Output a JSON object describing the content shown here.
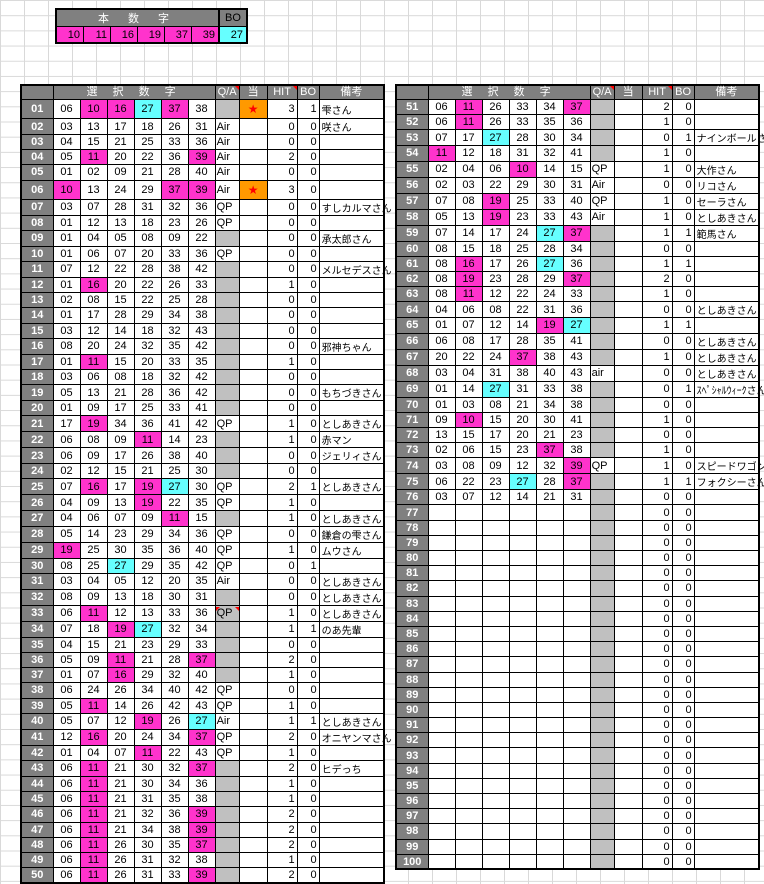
{
  "colors": {
    "header_bg": "#808080",
    "hit_fill": "#FF33CC",
    "bonus_fill": "#66FFFF",
    "qa_bg": "#C0C0C0",
    "star_bg": "#FF9900",
    "star_color": "#FF0000"
  },
  "icons": {
    "star": "★"
  },
  "winning": {
    "title": "本 数 字",
    "bo_label": "BO",
    "numbers": [
      "10",
      "11",
      "16",
      "19",
      "37",
      "39"
    ],
    "bonus": "27"
  },
  "table_headers": {
    "numbers": "選 択 数 字",
    "qa": "Q/A",
    "atari": "当",
    "hit": "HIT",
    "bo": "BO",
    "biko": "備考"
  },
  "rows": [
    {
      "no": "01",
      "nums": [
        "06",
        "10",
        "16",
        "27",
        "37",
        "38"
      ],
      "qa": "",
      "star": true,
      "hit": 3,
      "bo": 1,
      "name": "雫さん"
    },
    {
      "no": "02",
      "nums": [
        "03",
        "13",
        "17",
        "18",
        "26",
        "31"
      ],
      "qa": "Air",
      "hit": 0,
      "bo": 0,
      "name": "咲さん"
    },
    {
      "no": "03",
      "nums": [
        "04",
        "15",
        "21",
        "25",
        "33",
        "36"
      ],
      "qa": "Air",
      "hit": 0,
      "bo": 0,
      "name": ""
    },
    {
      "no": "04",
      "nums": [
        "05",
        "11",
        "20",
        "22",
        "36",
        "39"
      ],
      "qa": "Air",
      "hit": 2,
      "bo": 0,
      "name": ""
    },
    {
      "no": "05",
      "nums": [
        "01",
        "02",
        "09",
        "21",
        "28",
        "40"
      ],
      "qa": "Air",
      "hit": 0,
      "bo": 0,
      "name": ""
    },
    {
      "no": "06",
      "nums": [
        "10",
        "13",
        "24",
        "29",
        "37",
        "39"
      ],
      "qa": "Air",
      "star": true,
      "hit": 3,
      "bo": 0,
      "name": ""
    },
    {
      "no": "07",
      "nums": [
        "03",
        "07",
        "28",
        "31",
        "32",
        "36"
      ],
      "qa": "QP",
      "hit": 0,
      "bo": 0,
      "name": "すしカルマさん"
    },
    {
      "no": "08",
      "nums": [
        "01",
        "12",
        "13",
        "18",
        "23",
        "26"
      ],
      "qa": "QP",
      "hit": 0,
      "bo": 0,
      "name": ""
    },
    {
      "no": "09",
      "nums": [
        "01",
        "04",
        "05",
        "08",
        "09",
        "22"
      ],
      "qa": "",
      "hit": 0,
      "bo": 0,
      "name": "承太郎さん"
    },
    {
      "no": "10",
      "nums": [
        "01",
        "06",
        "07",
        "20",
        "33",
        "36"
      ],
      "qa": "QP",
      "hit": 0,
      "bo": 0,
      "name": ""
    },
    {
      "no": "11",
      "nums": [
        "07",
        "12",
        "22",
        "28",
        "38",
        "42"
      ],
      "qa": "",
      "hit": 0,
      "bo": 0,
      "name": "メルセデスさん"
    },
    {
      "no": "12",
      "nums": [
        "01",
        "16",
        "20",
        "22",
        "26",
        "33"
      ],
      "qa": "",
      "hit": 1,
      "bo": 0,
      "name": ""
    },
    {
      "no": "13",
      "nums": [
        "02",
        "08",
        "15",
        "22",
        "25",
        "28"
      ],
      "qa": "",
      "hit": 0,
      "bo": 0,
      "name": ""
    },
    {
      "no": "14",
      "nums": [
        "01",
        "17",
        "28",
        "29",
        "34",
        "38"
      ],
      "qa": "",
      "hit": 0,
      "bo": 0,
      "name": ""
    },
    {
      "no": "15",
      "nums": [
        "03",
        "12",
        "14",
        "18",
        "32",
        "43"
      ],
      "qa": "",
      "hit": 0,
      "bo": 0,
      "name": ""
    },
    {
      "no": "16",
      "nums": [
        "08",
        "20",
        "24",
        "32",
        "35",
        "42"
      ],
      "qa": "",
      "hit": 0,
      "bo": 0,
      "name": "邪神ちゃん"
    },
    {
      "no": "17",
      "nums": [
        "01",
        "11",
        "15",
        "20",
        "33",
        "35"
      ],
      "qa": "",
      "hit": 1,
      "bo": 0,
      "name": ""
    },
    {
      "no": "18",
      "nums": [
        "03",
        "06",
        "08",
        "18",
        "32",
        "42"
      ],
      "qa": "",
      "hit": 0,
      "bo": 0,
      "name": ""
    },
    {
      "no": "19",
      "nums": [
        "05",
        "13",
        "21",
        "28",
        "36",
        "42"
      ],
      "qa": "",
      "hit": 0,
      "bo": 0,
      "name": "もちづきさん"
    },
    {
      "no": "20",
      "nums": [
        "01",
        "09",
        "17",
        "25",
        "33",
        "41"
      ],
      "qa": "",
      "hit": 0,
      "bo": 0,
      "name": ""
    },
    {
      "no": "21",
      "nums": [
        "17",
        "19",
        "34",
        "36",
        "41",
        "42"
      ],
      "qa": "QP",
      "hit": 1,
      "bo": 0,
      "name": "としあきさん"
    },
    {
      "no": "22",
      "nums": [
        "06",
        "08",
        "09",
        "11",
        "14",
        "23"
      ],
      "qa": "",
      "hit": 1,
      "bo": 0,
      "name": "赤マン"
    },
    {
      "no": "23",
      "nums": [
        "06",
        "09",
        "17",
        "26",
        "38",
        "40"
      ],
      "qa": "",
      "hit": 0,
      "bo": 0,
      "name": "ジェリィさん"
    },
    {
      "no": "24",
      "nums": [
        "02",
        "12",
        "15",
        "21",
        "25",
        "30"
      ],
      "qa": "",
      "hit": 0,
      "bo": 0,
      "name": ""
    },
    {
      "no": "25",
      "nums": [
        "07",
        "16",
        "17",
        "19",
        "27",
        "30"
      ],
      "qa": "QP",
      "hit": 2,
      "bo": 1,
      "name": "としあきさん"
    },
    {
      "no": "26",
      "nums": [
        "04",
        "09",
        "13",
        "19",
        "22",
        "35"
      ],
      "qa": "QP",
      "hit": 1,
      "bo": 0,
      "name": ""
    },
    {
      "no": "27",
      "nums": [
        "04",
        "06",
        "07",
        "09",
        "11",
        "15"
      ],
      "qa": "",
      "hit": 1,
      "bo": 0,
      "name": "としあきさん"
    },
    {
      "no": "28",
      "nums": [
        "05",
        "14",
        "23",
        "29",
        "34",
        "36"
      ],
      "qa": "QP",
      "hit": 0,
      "bo": 0,
      "name": "鎌倉の雫さん"
    },
    {
      "no": "29",
      "nums": [
        "19",
        "25",
        "30",
        "35",
        "36",
        "40"
      ],
      "qa": "QP",
      "hit": 1,
      "bo": 0,
      "name": "ムウさん"
    },
    {
      "no": "30",
      "nums": [
        "08",
        "25",
        "27",
        "29",
        "35",
        "42"
      ],
      "qa": "QP",
      "hit": 0,
      "bo": 1,
      "name": ""
    },
    {
      "no": "31",
      "nums": [
        "03",
        "04",
        "05",
        "12",
        "20",
        "35"
      ],
      "qa": "Air",
      "hit": 0,
      "bo": 0,
      "name": "としあきさん"
    },
    {
      "no": "32",
      "nums": [
        "08",
        "09",
        "13",
        "18",
        "30",
        "31"
      ],
      "qa": "",
      "hit": 0,
      "bo": 0,
      "name": "としあきさん"
    },
    {
      "no": "33",
      "nums": [
        "06",
        "11",
        "12",
        "13",
        "33",
        "36"
      ],
      "qa": "QP",
      "comment": true,
      "hit": 1,
      "bo": 0,
      "name": "としあきさん"
    },
    {
      "no": "34",
      "nums": [
        "07",
        "18",
        "19",
        "27",
        "32",
        "34"
      ],
      "qa": "",
      "hit": 1,
      "bo": 1,
      "name": "のあ先輩"
    },
    {
      "no": "35",
      "nums": [
        "04",
        "15",
        "21",
        "23",
        "29",
        "33"
      ],
      "qa": "",
      "hit": 0,
      "bo": 0,
      "name": ""
    },
    {
      "no": "36",
      "nums": [
        "05",
        "09",
        "11",
        "21",
        "28",
        "37"
      ],
      "qa": "",
      "hit": 2,
      "bo": 0,
      "name": ""
    },
    {
      "no": "37",
      "nums": [
        "01",
        "07",
        "16",
        "29",
        "32",
        "40"
      ],
      "qa": "",
      "hit": 1,
      "bo": 0,
      "name": ""
    },
    {
      "no": "38",
      "nums": [
        "06",
        "24",
        "26",
        "34",
        "40",
        "42"
      ],
      "qa": "QP",
      "hit": 0,
      "bo": 0,
      "name": ""
    },
    {
      "no": "39",
      "nums": [
        "05",
        "11",
        "14",
        "26",
        "42",
        "43"
      ],
      "qa": "QP",
      "hit": 1,
      "bo": 0,
      "name": ""
    },
    {
      "no": "40",
      "nums": [
        "05",
        "07",
        "12",
        "19",
        "26",
        "27"
      ],
      "qa": "Air",
      "hit": 1,
      "bo": 1,
      "name": "としあきさん"
    },
    {
      "no": "41",
      "nums": [
        "12",
        "16",
        "20",
        "24",
        "34",
        "37"
      ],
      "qa": "QP",
      "hit": 2,
      "bo": 0,
      "name": "オニヤンマさん"
    },
    {
      "no": "42",
      "nums": [
        "01",
        "04",
        "07",
        "11",
        "22",
        "43"
      ],
      "qa": "QP",
      "hit": 1,
      "bo": 0,
      "name": ""
    },
    {
      "no": "43",
      "nums": [
        "06",
        "11",
        "21",
        "30",
        "32",
        "37"
      ],
      "qa": "",
      "hit": 2,
      "bo": 0,
      "name": "ヒデっち"
    },
    {
      "no": "44",
      "nums": [
        "06",
        "11",
        "21",
        "30",
        "34",
        "36"
      ],
      "qa": "",
      "hit": 1,
      "bo": 0,
      "name": ""
    },
    {
      "no": "45",
      "nums": [
        "06",
        "11",
        "21",
        "31",
        "35",
        "38"
      ],
      "qa": "",
      "hit": 1,
      "bo": 0,
      "name": ""
    },
    {
      "no": "46",
      "nums": [
        "06",
        "11",
        "21",
        "32",
        "36",
        "39"
      ],
      "qa": "",
      "hit": 2,
      "bo": 0,
      "name": ""
    },
    {
      "no": "47",
      "nums": [
        "06",
        "11",
        "21",
        "34",
        "38",
        "39"
      ],
      "qa": "",
      "hit": 2,
      "bo": 0,
      "name": ""
    },
    {
      "no": "48",
      "nums": [
        "06",
        "11",
        "26",
        "30",
        "35",
        "37"
      ],
      "qa": "",
      "hit": 2,
      "bo": 0,
      "name": ""
    },
    {
      "no": "49",
      "nums": [
        "06",
        "11",
        "26",
        "31",
        "32",
        "38"
      ],
      "qa": "",
      "hit": 1,
      "bo": 0,
      "name": ""
    },
    {
      "no": "50",
      "nums": [
        "06",
        "11",
        "26",
        "31",
        "33",
        "39"
      ],
      "qa": "",
      "hit": 2,
      "bo": 0,
      "name": ""
    },
    {
      "no": "51",
      "nums": [
        "06",
        "11",
        "26",
        "33",
        "34",
        "37"
      ],
      "qa": "",
      "hit": 2,
      "bo": 0,
      "name": ""
    },
    {
      "no": "52",
      "nums": [
        "06",
        "11",
        "26",
        "33",
        "35",
        "36"
      ],
      "qa": "",
      "hit": 1,
      "bo": 0,
      "name": ""
    },
    {
      "no": "53",
      "nums": [
        "07",
        "17",
        "27",
        "28",
        "30",
        "34"
      ],
      "qa": "",
      "hit": 0,
      "bo": 1,
      "name": "ナインボールさん"
    },
    {
      "no": "54",
      "nums": [
        "11",
        "12",
        "18",
        "31",
        "32",
        "41"
      ],
      "qa": "",
      "hit": 1,
      "bo": 0,
      "name": ""
    },
    {
      "no": "55",
      "nums": [
        "02",
        "04",
        "06",
        "10",
        "14",
        "15"
      ],
      "qa": "QP",
      "hit": 1,
      "bo": 0,
      "name": "大作さん"
    },
    {
      "no": "56",
      "nums": [
        "02",
        "03",
        "22",
        "29",
        "30",
        "31"
      ],
      "qa": "Air",
      "hit": 0,
      "bo": 0,
      "name": "リコさん"
    },
    {
      "no": "57",
      "nums": [
        "07",
        "08",
        "19",
        "25",
        "33",
        "40"
      ],
      "qa": "QP",
      "hit": 1,
      "bo": 0,
      "name": "セーラさん"
    },
    {
      "no": "58",
      "nums": [
        "05",
        "13",
        "19",
        "23",
        "33",
        "43"
      ],
      "qa": "Air",
      "hit": 1,
      "bo": 0,
      "name": "としあきさん"
    },
    {
      "no": "59",
      "nums": [
        "07",
        "14",
        "17",
        "24",
        "27",
        "37"
      ],
      "qa": "",
      "hit": 1,
      "bo": 1,
      "name": "範馬さん"
    },
    {
      "no": "60",
      "nums": [
        "08",
        "15",
        "18",
        "25",
        "28",
        "34"
      ],
      "qa": "",
      "hit": 0,
      "bo": 0,
      "name": ""
    },
    {
      "no": "61",
      "nums": [
        "08",
        "16",
        "17",
        "26",
        "27",
        "36"
      ],
      "qa": "",
      "hit": 1,
      "bo": 1,
      "name": ""
    },
    {
      "no": "62",
      "nums": [
        "08",
        "19",
        "23",
        "28",
        "29",
        "37"
      ],
      "qa": "",
      "hit": 2,
      "bo": 0,
      "name": ""
    },
    {
      "no": "63",
      "nums": [
        "08",
        "11",
        "12",
        "22",
        "24",
        "33"
      ],
      "qa": "",
      "hit": 1,
      "bo": 0,
      "name": ""
    },
    {
      "no": "64",
      "nums": [
        "04",
        "06",
        "08",
        "22",
        "31",
        "36"
      ],
      "qa": "",
      "hit": 0,
      "bo": 0,
      "name": "としあきさん"
    },
    {
      "no": "65",
      "nums": [
        "01",
        "07",
        "12",
        "14",
        "19",
        "27"
      ],
      "qa": "",
      "hit": 1,
      "bo": 1,
      "name": ""
    },
    {
      "no": "66",
      "nums": [
        "06",
        "08",
        "17",
        "28",
        "35",
        "41"
      ],
      "qa": "",
      "hit": 0,
      "bo": 0,
      "name": "としあきさん"
    },
    {
      "no": "67",
      "nums": [
        "20",
        "22",
        "24",
        "37",
        "38",
        "43"
      ],
      "qa": "",
      "hit": 1,
      "bo": 0,
      "name": "としあきさん"
    },
    {
      "no": "68",
      "nums": [
        "03",
        "04",
        "31",
        "38",
        "40",
        "43"
      ],
      "qa": "air",
      "hit": 0,
      "bo": 0,
      "name": "としあきさん"
    },
    {
      "no": "69",
      "nums": [
        "01",
        "14",
        "27",
        "31",
        "33",
        "38"
      ],
      "qa": "",
      "hit": 0,
      "bo": 1,
      "name": "ｽﾍﾟｼｬﾙｳｨｰｸさん"
    },
    {
      "no": "70",
      "nums": [
        "01",
        "03",
        "08",
        "21",
        "34",
        "38"
      ],
      "qa": "",
      "hit": 0,
      "bo": 0,
      "name": ""
    },
    {
      "no": "71",
      "nums": [
        "09",
        "10",
        "15",
        "20",
        "30",
        "41"
      ],
      "qa": "",
      "hit": 1,
      "bo": 0,
      "name": ""
    },
    {
      "no": "72",
      "nums": [
        "13",
        "15",
        "17",
        "20",
        "21",
        "23"
      ],
      "qa": "",
      "hit": 0,
      "bo": 0,
      "name": ""
    },
    {
      "no": "73",
      "nums": [
        "02",
        "06",
        "15",
        "23",
        "37",
        "38"
      ],
      "qa": "",
      "hit": 1,
      "bo": 0,
      "name": ""
    },
    {
      "no": "74",
      "nums": [
        "03",
        "08",
        "09",
        "12",
        "32",
        "39"
      ],
      "qa": "QP",
      "hit": 1,
      "bo": 0,
      "name": "スピードワゴンさん"
    },
    {
      "no": "75",
      "nums": [
        "06",
        "22",
        "23",
        "27",
        "28",
        "37"
      ],
      "qa": "",
      "hit": 1,
      "bo": 1,
      "name": "フォクシーさん"
    },
    {
      "no": "76",
      "nums": [
        "03",
        "07",
        "12",
        "14",
        "21",
        "31"
      ],
      "qa": "",
      "hit": 0,
      "bo": 0,
      "name": ""
    },
    {
      "no": "77",
      "nums": [],
      "qa": "",
      "hit": 0,
      "bo": 0,
      "name": ""
    },
    {
      "no": "78",
      "nums": [],
      "qa": "",
      "hit": 0,
      "bo": 0,
      "name": ""
    },
    {
      "no": "79",
      "nums": [],
      "qa": "",
      "hit": 0,
      "bo": 0,
      "name": ""
    },
    {
      "no": "80",
      "nums": [],
      "qa": "",
      "hit": 0,
      "bo": 0,
      "name": ""
    },
    {
      "no": "81",
      "nums": [],
      "qa": "",
      "hit": 0,
      "bo": 0,
      "name": ""
    },
    {
      "no": "82",
      "nums": [],
      "qa": "",
      "hit": 0,
      "bo": 0,
      "name": ""
    },
    {
      "no": "83",
      "nums": [],
      "qa": "",
      "hit": 0,
      "bo": 0,
      "name": ""
    },
    {
      "no": "84",
      "nums": [],
      "qa": "",
      "hit": 0,
      "bo": 0,
      "name": ""
    },
    {
      "no": "85",
      "nums": [],
      "qa": "",
      "hit": 0,
      "bo": 0,
      "name": ""
    },
    {
      "no": "86",
      "nums": [],
      "qa": "",
      "hit": 0,
      "bo": 0,
      "name": ""
    },
    {
      "no": "87",
      "nums": [],
      "qa": "",
      "hit": 0,
      "bo": 0,
      "name": ""
    },
    {
      "no": "88",
      "nums": [],
      "qa": "",
      "hit": 0,
      "bo": 0,
      "name": ""
    },
    {
      "no": "89",
      "nums": [],
      "qa": "",
      "hit": 0,
      "bo": 0,
      "name": ""
    },
    {
      "no": "90",
      "nums": [],
      "qa": "",
      "hit": 0,
      "bo": 0,
      "name": ""
    },
    {
      "no": "91",
      "nums": [],
      "qa": "",
      "hit": 0,
      "bo": 0,
      "name": ""
    },
    {
      "no": "92",
      "nums": [],
      "qa": "",
      "hit": 0,
      "bo": 0,
      "name": ""
    },
    {
      "no": "93",
      "nums": [],
      "qa": "",
      "hit": 0,
      "bo": 0,
      "name": ""
    },
    {
      "no": "94",
      "nums": [],
      "qa": "",
      "hit": 0,
      "bo": 0,
      "name": ""
    },
    {
      "no": "95",
      "nums": [],
      "qa": "",
      "hit": 0,
      "bo": 0,
      "name": ""
    },
    {
      "no": "96",
      "nums": [],
      "qa": "",
      "hit": 0,
      "bo": 0,
      "name": ""
    },
    {
      "no": "97",
      "nums": [],
      "qa": "",
      "hit": 0,
      "bo": 0,
      "name": ""
    },
    {
      "no": "98",
      "nums": [],
      "qa": "",
      "hit": 0,
      "bo": 0,
      "name": ""
    },
    {
      "no": "99",
      "nums": [],
      "qa": "",
      "hit": 0,
      "bo": 0,
      "name": ""
    },
    {
      "no": "100",
      "nums": [],
      "qa": "",
      "hit": 0,
      "bo": 0,
      "name": ""
    }
  ]
}
